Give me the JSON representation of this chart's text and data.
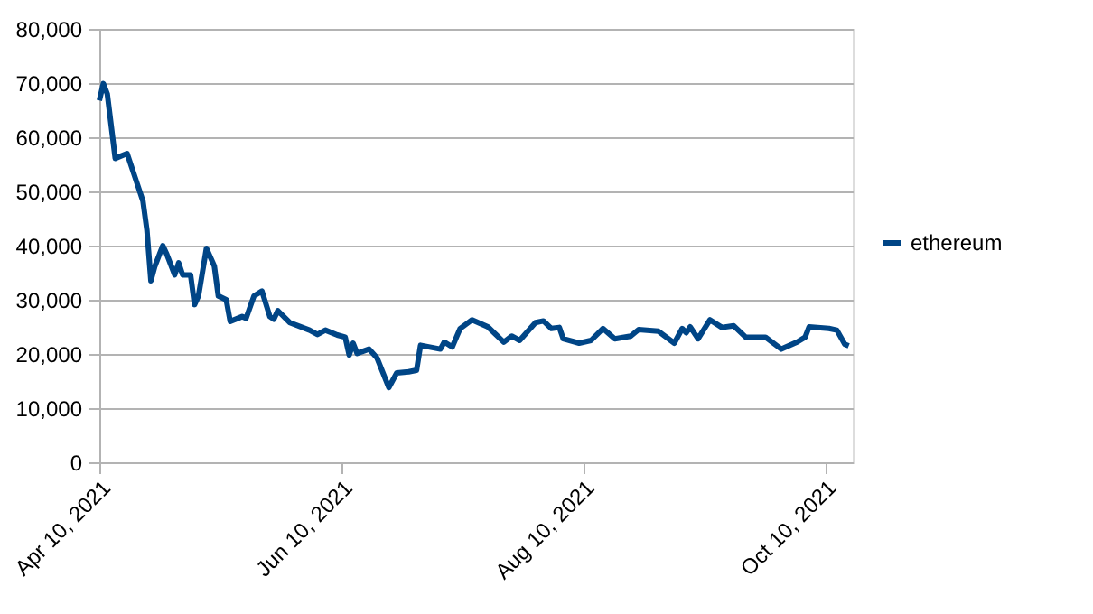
{
  "chart_data": {
    "type": "line",
    "x": [
      "2021-04-10",
      "2021-04-11",
      "2021-04-12",
      "2021-04-14",
      "2021-04-17",
      "2021-04-19",
      "2021-04-21",
      "2021-04-22",
      "2021-04-23",
      "2021-04-24",
      "2021-04-26",
      "2021-04-27",
      "2021-04-29",
      "2021-04-30",
      "2021-05-01",
      "2021-05-03",
      "2021-05-04",
      "2021-05-05",
      "2021-05-07",
      "2021-05-09",
      "2021-05-10",
      "2021-05-12",
      "2021-05-13",
      "2021-05-16",
      "2021-05-17",
      "2021-05-19",
      "2021-05-21",
      "2021-05-23",
      "2021-05-24",
      "2021-05-25",
      "2021-05-28",
      "2021-06-02",
      "2021-06-04",
      "2021-06-06",
      "2021-06-09",
      "2021-06-11",
      "2021-06-12",
      "2021-06-13",
      "2021-06-14",
      "2021-06-17",
      "2021-06-19",
      "2021-06-22",
      "2021-06-24",
      "2021-06-27",
      "2021-06-29",
      "2021-06-30",
      "2021-07-05",
      "2021-07-06",
      "2021-07-08",
      "2021-07-10",
      "2021-07-13",
      "2021-07-17",
      "2021-07-21",
      "2021-07-23",
      "2021-07-25",
      "2021-07-29",
      "2021-07-31",
      "2021-08-02",
      "2021-08-04",
      "2021-08-05",
      "2021-08-09",
      "2021-08-12",
      "2021-08-15",
      "2021-08-18",
      "2021-08-22",
      "2021-08-24",
      "2021-08-29",
      "2021-09-02",
      "2021-09-04",
      "2021-09-05",
      "2021-09-06",
      "2021-09-08",
      "2021-09-11",
      "2021-09-14",
      "2021-09-17",
      "2021-09-20",
      "2021-09-25",
      "2021-09-29",
      "2021-10-03",
      "2021-10-05",
      "2021-10-06",
      "2021-10-11",
      "2021-10-13",
      "2021-10-15",
      "2021-10-16"
    ],
    "series": [
      {
        "name": "ethereum",
        "color": "#004586",
        "values": [
          66800,
          69900,
          68000,
          56100,
          57000,
          52600,
          48200,
          42800,
          33500,
          36200,
          40000,
          38400,
          34600,
          36800,
          34600,
          34600,
          29100,
          30700,
          39500,
          36200,
          30700,
          30000,
          26000,
          26900,
          26600,
          30700,
          31600,
          26900,
          26400,
          28000,
          25800,
          24400,
          23600,
          24400,
          23500,
          23100,
          19800,
          22000,
          20100,
          20900,
          19300,
          13800,
          16500,
          16700,
          17000,
          21600,
          20900,
          22200,
          21300,
          24700,
          26300,
          25000,
          22200,
          23300,
          22500,
          25800,
          26100,
          24700,
          24900,
          22800,
          22000,
          22500,
          24700,
          22800,
          23300,
          24500,
          24200,
          22000,
          24700,
          23900,
          25000,
          22800,
          26300,
          24900,
          25200,
          23100,
          23100,
          20900,
          22200,
          23100,
          25000,
          24700,
          24400,
          21800,
          21500
        ]
      }
    ],
    "xlim": [
      "2021-04-10",
      "2021-10-17"
    ],
    "xticks": [
      {
        "value": "2021-04-10",
        "label": "Apr 10, 2021"
      },
      {
        "value": "2021-06-10",
        "label": "Jun 10, 2021"
      },
      {
        "value": "2021-08-10",
        "label": "Aug 10, 2021"
      },
      {
        "value": "2021-10-10",
        "label": "Oct 10, 2021"
      }
    ],
    "ylim": [
      0,
      80000
    ],
    "yticks": [
      0,
      {
        "value": 10000,
        "label": "10,000"
      },
      {
        "value": 20000,
        "label": "20,000"
      },
      {
        "value": 30000,
        "label": "30,000"
      },
      {
        "value": 40000,
        "label": "40,000"
      },
      {
        "value": 50000,
        "label": "50,000"
      },
      {
        "value": 60000,
        "label": "60,000"
      },
      {
        "value": 70000,
        "label": "70,000"
      },
      {
        "value": 80000,
        "label": "80,000"
      }
    ],
    "grid": "y",
    "legend": "right",
    "marker": "none",
    "line_style": "solid"
  }
}
